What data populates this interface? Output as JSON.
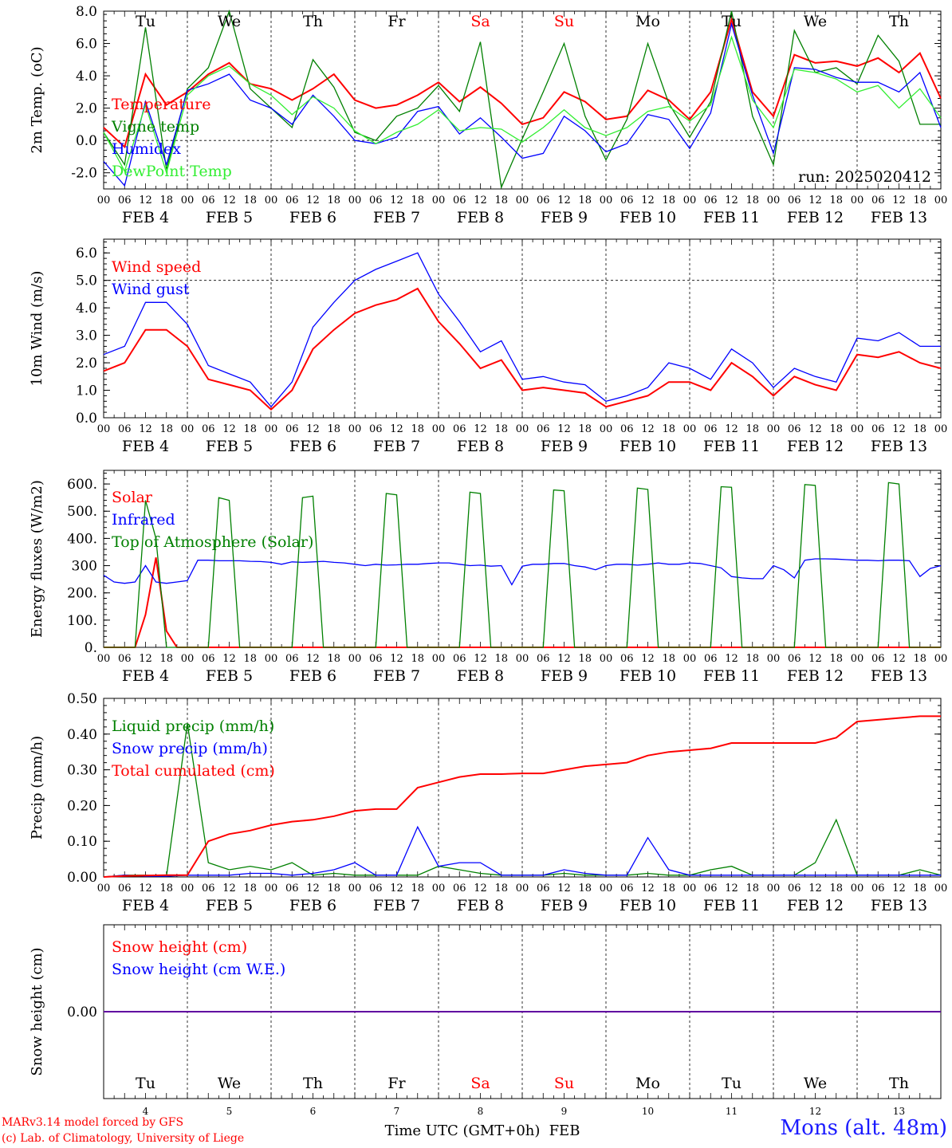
{
  "meteogram": {
    "days": [
      "Tu",
      "We",
      "Th",
      "Fr",
      "Sa",
      "Su",
      "Mo",
      "Tu",
      "We",
      "Th"
    ],
    "weekend_days": [
      "Sa",
      "Su"
    ],
    "hour_ticks": [
      "00",
      "06",
      "12",
      "18"
    ],
    "final_hour_tick": "00",
    "date_labels": [
      "FEB  4",
      "FEB  5",
      "FEB  6",
      "FEB  7",
      "FEB  8",
      "FEB  9",
      "FEB 10",
      "FEB 11",
      "FEB 12",
      "FEB 13"
    ],
    "day_numbers": [
      "4",
      "5",
      "6",
      "7",
      "8",
      "9",
      "10",
      "11",
      "12",
      "13"
    ],
    "month": "FEB",
    "time_axis_label": "Time UTC (GMT+0h)",
    "run_label": "run: 2025020412",
    "credit_line1": "MARv3.14 model forced by GFS",
    "credit_line2": "(c) Lab. of Climatology, University of Liege",
    "station": "Mons (alt. 48m)",
    "colors": {
      "red": "#ff0000",
      "green": "#008000",
      "blue": "#0000ff",
      "lightgreen": "#33ee33",
      "weekend": "#ff0000",
      "text": "#000000"
    }
  },
  "chart_data": [
    {
      "type": "line",
      "ylabel": "2m Temp. (oC)",
      "ylim": [
        -3,
        8
      ],
      "yticks": [
        -2,
        0,
        2,
        4,
        6,
        8
      ],
      "ytick_labels": [
        "-2.0",
        "0.0",
        "2.0",
        "4.0",
        "6.0",
        "8.0"
      ],
      "reference_line": 0,
      "x_unit": "hours since FEB 4 00 UTC",
      "x": [
        0,
        6,
        12,
        18,
        24,
        30,
        36,
        42,
        48,
        54,
        60,
        66,
        72,
        78,
        84,
        90,
        96,
        102,
        108,
        114,
        120,
        126,
        132,
        138,
        144,
        150,
        156,
        162,
        168,
        174,
        180,
        186,
        192,
        198,
        204,
        210,
        216,
        222,
        228,
        234,
        240
      ],
      "series": [
        {
          "name": "Temperature",
          "color": "#ff0000",
          "values": [
            0.8,
            -0.4,
            4.1,
            2.2,
            3.0,
            4.1,
            4.8,
            3.5,
            3.2,
            2.5,
            3.2,
            4.1,
            2.5,
            2.0,
            2.2,
            2.8,
            3.6,
            2.4,
            3.3,
            2.3,
            1.0,
            1.4,
            3.0,
            2.4,
            1.3,
            1.5,
            3.1,
            2.5,
            1.3,
            3.0,
            7.5,
            3.0,
            1.5,
            5.3,
            4.8,
            4.9,
            4.6,
            5.1,
            4.2,
            5.4,
            2.6
          ]
        },
        {
          "name": "Vigne temp",
          "color": "#008000",
          "values": [
            0.5,
            -1.5,
            7.0,
            -1.8,
            3.2,
            4.5,
            8.0,
            3.2,
            2.0,
            0.8,
            5.0,
            3.3,
            0.5,
            0.0,
            1.5,
            2.0,
            3.4,
            1.8,
            6.1,
            -2.9,
            0.1,
            3.0,
            6.0,
            1.5,
            -1.2,
            1.3,
            6.0,
            2.3,
            0.2,
            2.4,
            8.0,
            1.5,
            -1.5,
            6.8,
            4.2,
            4.5,
            3.5,
            6.5,
            4.9,
            1.0,
            1.0
          ]
        },
        {
          "name": "Humidex",
          "color": "#0000ff",
          "values": [
            -1.3,
            -2.8,
            2.4,
            -1.5,
            3.1,
            3.5,
            4.1,
            2.5,
            2.0,
            1.0,
            2.8,
            1.5,
            0.0,
            -0.2,
            0.2,
            1.8,
            2.1,
            0.4,
            1.4,
            0.2,
            -1.1,
            -0.8,
            1.5,
            0.6,
            -0.7,
            -0.2,
            1.6,
            1.3,
            -0.5,
            1.7,
            7.2,
            2.8,
            -0.8,
            4.5,
            4.4,
            3.9,
            3.6,
            3.6,
            3.0,
            4.2,
            0.8
          ]
        },
        {
          "name": "DewPoint Temp",
          "color": "#33ee33",
          "values": [
            0.5,
            -1.9,
            2.2,
            -2.0,
            2.8,
            4.0,
            4.6,
            3.5,
            2.8,
            1.6,
            2.7,
            2.0,
            0.6,
            -0.2,
            0.5,
            1.0,
            1.9,
            0.6,
            0.8,
            0.7,
            -0.1,
            0.8,
            1.9,
            0.8,
            0.3,
            0.8,
            1.8,
            2.1,
            1.2,
            2.2,
            6.4,
            2.5,
            0.8,
            4.4,
            4.2,
            3.8,
            3.0,
            3.4,
            2.0,
            3.2,
            1.4
          ]
        }
      ]
    },
    {
      "type": "line",
      "ylabel": "10m Wind (m/s)",
      "ylim": [
        0,
        6.5
      ],
      "yticks": [
        0,
        1,
        2,
        3,
        4,
        5,
        6
      ],
      "ytick_labels": [
        "0.0",
        "1.0",
        "2.0",
        "3.0",
        "4.0",
        "5.0",
        "6.0"
      ],
      "reference_line": 5,
      "x_unit": "hours since FEB 4 00 UTC",
      "x": [
        0,
        6,
        12,
        18,
        24,
        30,
        36,
        42,
        48,
        54,
        60,
        66,
        72,
        78,
        84,
        90,
        96,
        102,
        108,
        114,
        120,
        126,
        132,
        138,
        144,
        150,
        156,
        162,
        168,
        174,
        180,
        186,
        192,
        198,
        204,
        210,
        216,
        222,
        228,
        234,
        240
      ],
      "series": [
        {
          "name": "Wind speed",
          "color": "#ff0000",
          "values": [
            1.7,
            2.0,
            3.2,
            3.2,
            2.6,
            1.4,
            1.2,
            1.0,
            0.3,
            1.0,
            2.5,
            3.2,
            3.8,
            4.1,
            4.3,
            4.7,
            3.5,
            2.7,
            1.8,
            2.1,
            1.0,
            1.1,
            1.0,
            0.9,
            0.4,
            0.6,
            0.8,
            1.3,
            1.3,
            1.0,
            2.0,
            1.5,
            0.8,
            1.5,
            1.2,
            1.0,
            2.3,
            2.2,
            2.4,
            2.0,
            1.8
          ]
        },
        {
          "name": "Wind gust",
          "color": "#0000ff",
          "values": [
            2.3,
            2.6,
            4.2,
            4.2,
            3.4,
            1.9,
            1.6,
            1.3,
            0.4,
            1.3,
            3.3,
            4.2,
            5.0,
            5.4,
            5.7,
            6.0,
            4.5,
            3.5,
            2.4,
            2.8,
            1.4,
            1.5,
            1.3,
            1.2,
            0.6,
            0.8,
            1.1,
            2.0,
            1.8,
            1.4,
            2.5,
            2.0,
            1.1,
            1.8,
            1.5,
            1.3,
            2.9,
            2.8,
            3.1,
            2.6,
            2.6
          ]
        }
      ]
    },
    {
      "type": "line",
      "ylabel": "Energy fluxes (W/m2)",
      "ylim": [
        0,
        650
      ],
      "yticks": [
        0,
        100,
        200,
        300,
        400,
        500,
        600
      ],
      "ytick_labels": [
        "0.",
        "100.",
        "200.",
        "300",
        "400.",
        "500.",
        "600."
      ],
      "x_unit": "hours since FEB 4 00 UTC",
      "x": [
        0,
        3,
        6,
        9,
        12,
        15,
        18,
        21,
        24,
        27,
        30,
        33,
        36,
        39,
        42,
        45,
        48,
        51,
        54,
        57,
        60,
        63,
        66,
        69,
        72,
        75,
        78,
        81,
        84,
        87,
        90,
        93,
        96,
        99,
        102,
        105,
        108,
        111,
        114,
        117,
        120,
        123,
        126,
        129,
        132,
        135,
        138,
        141,
        144,
        147,
        150,
        153,
        156,
        159,
        162,
        165,
        168,
        171,
        174,
        177,
        180,
        183,
        186,
        189,
        192,
        195,
        198,
        201,
        204,
        207,
        210,
        213,
        216,
        219,
        222,
        225,
        228,
        231,
        234,
        237,
        240
      ],
      "series": [
        {
          "name": "Solar",
          "color": "#ff0000",
          "values": [
            0,
            0,
            0,
            0,
            120,
            330,
            60,
            0,
            0,
            0,
            0,
            0,
            0,
            0,
            0,
            0,
            0,
            0,
            0,
            0,
            0,
            0,
            0,
            0,
            0,
            0,
            0,
            0,
            0,
            0,
            0,
            0,
            0,
            0,
            0,
            0,
            0,
            0,
            0,
            0,
            0,
            0,
            0,
            0,
            0,
            0,
            0,
            0,
            0,
            0,
            0,
            0,
            0,
            0,
            0,
            0,
            0,
            0,
            0,
            0,
            0,
            0,
            0,
            0,
            0,
            0,
            0,
            0,
            0,
            0,
            0,
            0,
            0,
            0,
            0,
            0,
            0,
            0,
            0,
            0,
            0
          ]
        },
        {
          "name": "Infrared",
          "color": "#0000ff",
          "values": [
            265,
            240,
            235,
            240,
            300,
            240,
            235,
            240,
            245,
            320,
            320,
            318,
            318,
            318,
            316,
            315,
            312,
            305,
            314,
            312,
            314,
            316,
            312,
            310,
            305,
            300,
            305,
            302,
            303,
            305,
            305,
            308,
            310,
            310,
            305,
            300,
            302,
            298,
            300,
            230,
            298,
            305,
            305,
            308,
            308,
            300,
            295,
            285,
            300,
            305,
            305,
            302,
            305,
            310,
            305,
            305,
            310,
            308,
            300,
            292,
            260,
            255,
            252,
            252,
            300,
            285,
            255,
            320,
            325,
            325,
            324,
            322,
            320,
            320,
            318,
            320,
            320,
            318,
            260,
            290,
            300
          ]
        },
        {
          "name": "Top of Atmosphere (Solar)",
          "color": "#008000",
          "values": [
            0,
            0,
            0,
            0,
            540,
            400,
            0,
            0,
            0,
            0,
            0,
            550,
            540,
            0,
            0,
            0,
            0,
            0,
            0,
            550,
            555,
            0,
            0,
            0,
            0,
            0,
            0,
            565,
            560,
            0,
            0,
            0,
            0,
            0,
            0,
            570,
            565,
            0,
            0,
            0,
            0,
            0,
            0,
            578,
            575,
            0,
            0,
            0,
            0,
            0,
            0,
            585,
            580,
            0,
            0,
            0,
            0,
            0,
            0,
            590,
            588,
            0,
            0,
            0,
            0,
            0,
            0,
            598,
            595,
            0,
            0,
            0,
            0,
            0,
            0,
            605,
            600,
            0,
            0,
            0,
            0
          ]
        }
      ]
    },
    {
      "type": "line",
      "ylabel": "Precip (mm/h)",
      "ylim": [
        0,
        0.5
      ],
      "yticks": [
        0,
        0.1,
        0.2,
        0.3,
        0.4,
        0.5
      ],
      "ytick_labels": [
        "0.00",
        "0.10",
        "0.20",
        "0.30",
        "0.40",
        "0.50"
      ],
      "x_unit": "hours since FEB 4 00 UTC",
      "x": [
        0,
        6,
        12,
        18,
        24,
        30,
        36,
        42,
        48,
        54,
        60,
        66,
        72,
        78,
        84,
        90,
        96,
        102,
        108,
        114,
        120,
        126,
        132,
        138,
        144,
        150,
        156,
        162,
        168,
        174,
        180,
        186,
        192,
        198,
        204,
        210,
        216,
        222,
        228,
        234,
        240
      ],
      "series": [
        {
          "name": "Liquid precip (mm/h)",
          "color": "#008000",
          "values": [
            0,
            0.005,
            0.005,
            0.002,
            0.43,
            0.04,
            0.02,
            0.03,
            0.02,
            0.04,
            0.005,
            0.01,
            0.005,
            0.005,
            0.005,
            0.005,
            0.03,
            0.02,
            0.01,
            0.005,
            0.005,
            0.005,
            0.01,
            0.005,
            0.005,
            0.005,
            0.01,
            0.005,
            0.005,
            0.02,
            0.03,
            0.005,
            0.005,
            0.005,
            0.04,
            0.16,
            0.005,
            0.005,
            0.005,
            0.02,
            0.005
          ]
        },
        {
          "name": "Snow precip (mm/h)",
          "color": "#0000ff",
          "values": [
            0,
            0.005,
            0.002,
            0.002,
            0.005,
            0.005,
            0.005,
            0.01,
            0.01,
            0.005,
            0.01,
            0.02,
            0.04,
            0.005,
            0.005,
            0.14,
            0.03,
            0.04,
            0.04,
            0.005,
            0.005,
            0.005,
            0.02,
            0.01,
            0.005,
            0.005,
            0.11,
            0.02,
            0.005,
            0.005,
            0.005,
            0.005,
            0.005,
            0.005,
            0.005,
            0.005,
            0.005,
            0.005,
            0.005,
            0.005,
            0.005
          ]
        },
        {
          "name": "Total cumulated (cm)",
          "color": "#ff0000",
          "values": [
            0,
            0.003,
            0.004,
            0.005,
            0.005,
            0.1,
            0.12,
            0.13,
            0.145,
            0.155,
            0.16,
            0.17,
            0.185,
            0.19,
            0.19,
            0.25,
            0.265,
            0.28,
            0.288,
            0.288,
            0.29,
            0.29,
            0.3,
            0.31,
            0.315,
            0.32,
            0.34,
            0.35,
            0.355,
            0.36,
            0.375,
            0.375,
            0.375,
            0.375,
            0.375,
            0.39,
            0.435,
            0.44,
            0.445,
            0.45,
            0.45
          ]
        }
      ]
    },
    {
      "type": "line",
      "ylabel": "Snow height (cm)",
      "ylim": [
        -1,
        1
      ],
      "yticks": [
        0
      ],
      "ytick_labels": [
        "0.00"
      ],
      "x_unit": "hours since FEB 4 00 UTC",
      "x": [
        0,
        240
      ],
      "series": [
        {
          "name": "Snow height (cm)",
          "color": "#ff0000",
          "values": [
            0,
            0
          ]
        },
        {
          "name": "Snow height (cm W.E.)",
          "color": "#0000ff",
          "values": [
            0,
            0
          ]
        }
      ]
    }
  ]
}
